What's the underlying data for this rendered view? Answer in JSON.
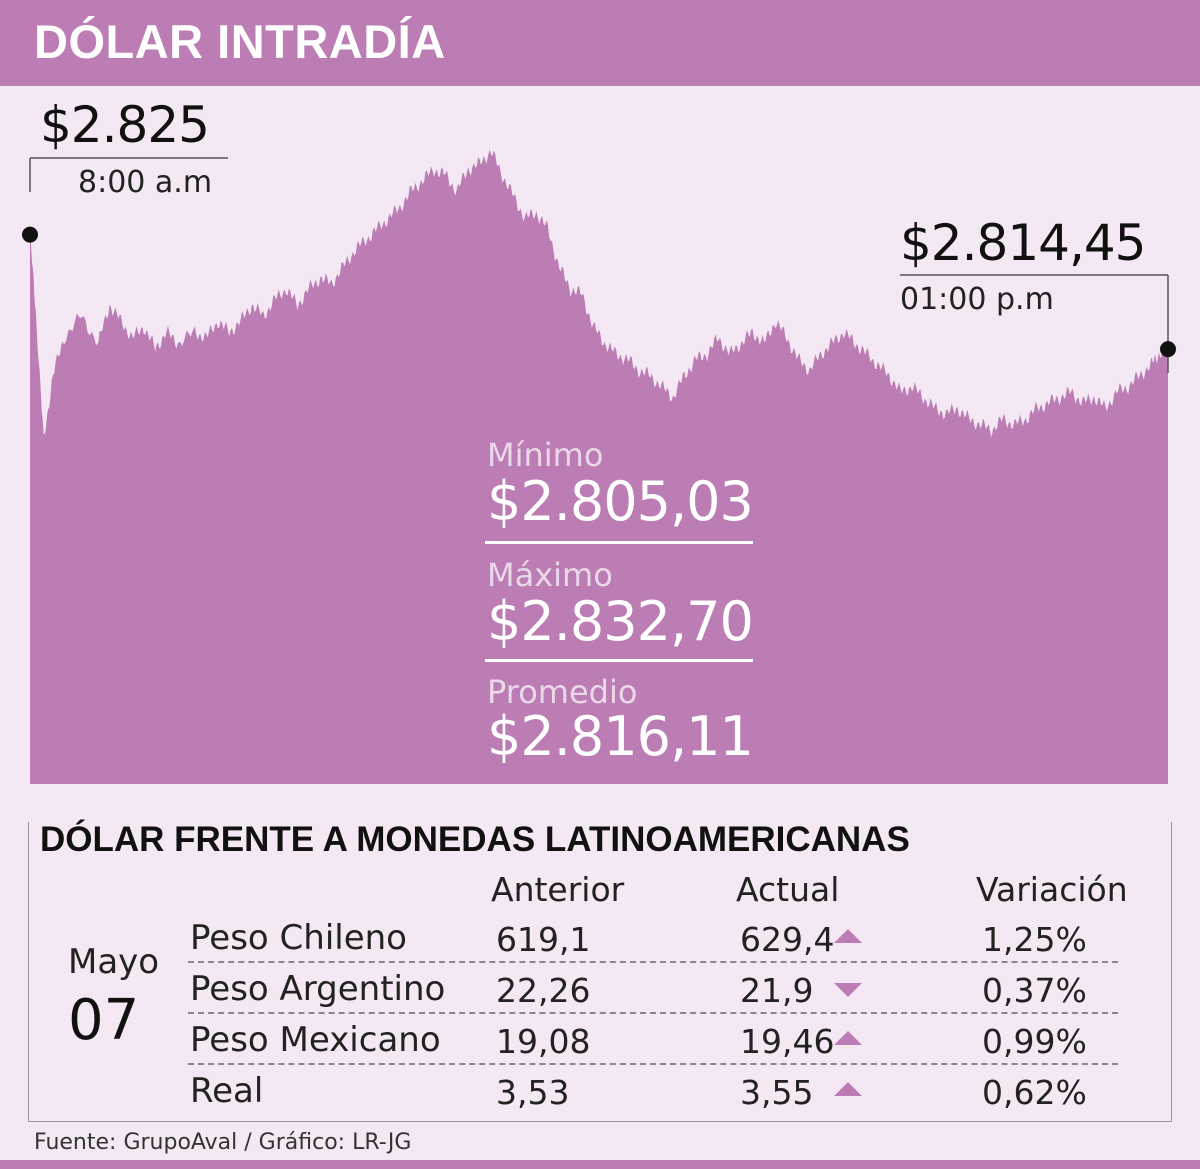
{
  "header": {
    "title": "DÓLAR INTRADÍA"
  },
  "chart_data": {
    "type": "area",
    "title": "DÓLAR INTRADÍA",
    "color": "#bb7db4",
    "x_start": "8:00 a.m",
    "x_end": "01:00 p.m",
    "ylim": [
      2800,
      2835
    ],
    "points": [
      [
        0,
        2825.0
      ],
      [
        0.005,
        2818.0
      ],
      [
        0.012,
        2806.0
      ],
      [
        0.02,
        2812.0
      ],
      [
        0.03,
        2815.5
      ],
      [
        0.045,
        2817.5
      ],
      [
        0.06,
        2815.0
      ],
      [
        0.07,
        2818.5
      ],
      [
        0.08,
        2817.0
      ],
      [
        0.09,
        2815.5
      ],
      [
        0.1,
        2816.5
      ],
      [
        0.11,
        2814.5
      ],
      [
        0.12,
        2816.0
      ],
      [
        0.13,
        2815.0
      ],
      [
        0.145,
        2816.0
      ],
      [
        0.155,
        2815.5
      ],
      [
        0.165,
        2817.0
      ],
      [
        0.175,
        2816.0
      ],
      [
        0.185,
        2817.0
      ],
      [
        0.195,
        2818.5
      ],
      [
        0.205,
        2817.5
      ],
      [
        0.215,
        2819.0
      ],
      [
        0.225,
        2820.0
      ],
      [
        0.235,
        2818.5
      ],
      [
        0.245,
        2820.0
      ],
      [
        0.255,
        2821.0
      ],
      [
        0.265,
        2820.5
      ],
      [
        0.275,
        2822.0
      ],
      [
        0.285,
        2823.5
      ],
      [
        0.295,
        2824.5
      ],
      [
        0.305,
        2825.5
      ],
      [
        0.315,
        2826.5
      ],
      [
        0.325,
        2827.5
      ],
      [
        0.335,
        2829.0
      ],
      [
        0.345,
        2830.0
      ],
      [
        0.355,
        2831.0
      ],
      [
        0.365,
        2830.5
      ],
      [
        0.375,
        2829.0
      ],
      [
        0.385,
        2831.0
      ],
      [
        0.395,
        2831.5
      ],
      [
        0.405,
        2832.7
      ],
      [
        0.415,
        2830.5
      ],
      [
        0.425,
        2828.5
      ],
      [
        0.435,
        2826.5
      ],
      [
        0.445,
        2827.0
      ],
      [
        0.455,
        2825.5
      ],
      [
        0.465,
        2822.0
      ],
      [
        0.475,
        2820.0
      ],
      [
        0.485,
        2819.5
      ],
      [
        0.495,
        2816.5
      ],
      [
        0.505,
        2815.0
      ],
      [
        0.515,
        2814.0
      ],
      [
        0.525,
        2813.5
      ],
      [
        0.535,
        2812.5
      ],
      [
        0.545,
        2812.0
      ],
      [
        0.555,
        2811.0
      ],
      [
        0.565,
        2810.0
      ],
      [
        0.575,
        2812.0
      ],
      [
        0.585,
        2813.5
      ],
      [
        0.595,
        2814.0
      ],
      [
        0.605,
        2815.5
      ],
      [
        0.615,
        2814.0
      ],
      [
        0.625,
        2815.0
      ],
      [
        0.635,
        2816.0
      ],
      [
        0.645,
        2815.0
      ],
      [
        0.655,
        2817.0
      ],
      [
        0.665,
        2815.5
      ],
      [
        0.675,
        2813.5
      ],
      [
        0.685,
        2812.5
      ],
      [
        0.695,
        2814.0
      ],
      [
        0.705,
        2815.0
      ],
      [
        0.715,
        2816.0
      ],
      [
        0.725,
        2815.0
      ],
      [
        0.735,
        2814.0
      ],
      [
        0.745,
        2813.0
      ],
      [
        0.755,
        2812.0
      ],
      [
        0.765,
        2810.5
      ],
      [
        0.775,
        2811.0
      ],
      [
        0.785,
        2810.0
      ],
      [
        0.795,
        2809.0
      ],
      [
        0.805,
        2808.5
      ],
      [
        0.815,
        2809.0
      ],
      [
        0.825,
        2808.0
      ],
      [
        0.835,
        2807.5
      ],
      [
        0.845,
        2807.0
      ],
      [
        0.855,
        2808.0
      ],
      [
        0.865,
        2807.5
      ],
      [
        0.875,
        2808.0
      ],
      [
        0.885,
        2809.0
      ],
      [
        0.895,
        2809.5
      ],
      [
        0.905,
        2810.0
      ],
      [
        0.915,
        2810.5
      ],
      [
        0.925,
        2809.5
      ],
      [
        0.935,
        2810.0
      ],
      [
        0.945,
        2809.0
      ],
      [
        0.955,
        2810.5
      ],
      [
        0.965,
        2811.0
      ],
      [
        0.975,
        2812.0
      ],
      [
        0.985,
        2813.0
      ],
      [
        0.992,
        2814.0
      ],
      [
        1.0,
        2814.45
      ]
    ],
    "start_label": {
      "value": "$2.825",
      "time": "8:00 a.m"
    },
    "end_label": {
      "value": "$2.814,45",
      "time": "01:00 p.m"
    },
    "stats": [
      {
        "label": "Mínimo",
        "value": "$2.805,03"
      },
      {
        "label": "Máximo",
        "value": "$2.832,70"
      },
      {
        "label": "Promedio",
        "value": "$2.816,11"
      }
    ]
  },
  "table": {
    "title": "DÓLAR FRENTE A MONEDAS LATINOAMERICANAS",
    "date": {
      "month": "Mayo",
      "day": "07"
    },
    "columns": [
      "Anterior",
      "Actual",
      "Variación"
    ],
    "rows": [
      {
        "name": "Peso Chileno",
        "anterior": "619,1",
        "actual": "629,4",
        "trend": "up",
        "variacion": "1,25%"
      },
      {
        "name": "Peso Argentino",
        "anterior": "22,26",
        "actual": "21,9",
        "trend": "down",
        "variacion": "0,37%"
      },
      {
        "name": "Peso Mexicano",
        "anterior": "19,08",
        "actual": "19,46",
        "trend": "up",
        "variacion": "0,99%"
      },
      {
        "name": "Real",
        "anterior": "3,53",
        "actual": "3,55",
        "trend": "up",
        "variacion": "0,62%"
      }
    ]
  },
  "footer": {
    "source": "Fuente:  GrupoAval / Gráfico: LR-JG"
  }
}
